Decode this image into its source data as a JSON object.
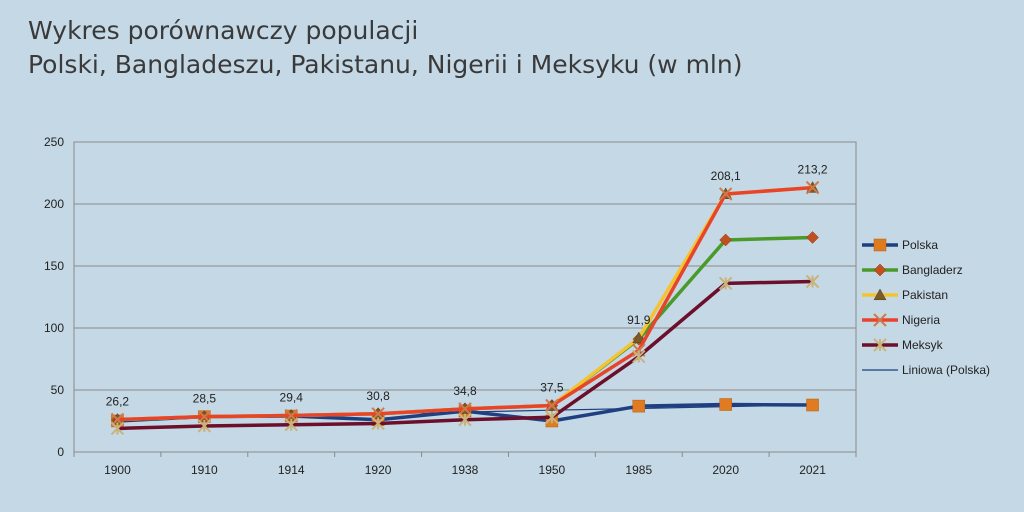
{
  "title": {
    "line1": "Wykres porównawczy populacji",
    "line2": "Polski, Bangladeszu, Pakistanu, Nigerii i Meksyku (w mln)"
  },
  "chart_data": {
    "type": "line",
    "categories": [
      "1900",
      "1910",
      "1914",
      "1920",
      "1938",
      "1950",
      "1985",
      "2020",
      "2021"
    ],
    "ylim": [
      0,
      250
    ],
    "yticks": [
      0,
      50,
      100,
      150,
      200,
      250
    ],
    "grid": true,
    "legend_position": "right",
    "series": [
      {
        "name": "Polska",
        "color": "#1f3f80",
        "marker": "square",
        "marker_color": "#e07b22",
        "values": [
          25,
          28.5,
          29,
          26,
          33,
          25,
          37,
          38.3,
          37.9
        ]
      },
      {
        "name": "Bangladerz",
        "color": "#4a9a2a",
        "marker": "diamond",
        "marker_color": "#c0501f",
        "values": [
          26,
          28.5,
          29.4,
          30.8,
          34.8,
          37.5,
          91,
          171,
          173
        ]
      },
      {
        "name": "Pakistan",
        "color": "#f4c430",
        "marker": "triangle",
        "marker_color": "#7a5a28",
        "values": [
          26.2,
          28.5,
          29.4,
          30.8,
          34.8,
          37.5,
          91.9,
          208.1,
          213.2
        ]
      },
      {
        "name": "Nigeria",
        "color": "#e8442a",
        "marker": "x",
        "marker_color": "#d07a4a",
        "values": [
          26.2,
          28.5,
          29.4,
          30.8,
          34.8,
          37.5,
          82,
          208.1,
          213.2
        ]
      },
      {
        "name": "Meksyk",
        "color": "#6b0f2a",
        "marker": "star",
        "marker_color": "#c9b37a",
        "values": [
          19,
          21,
          22,
          23,
          26,
          28,
          77,
          136,
          137.5
        ]
      },
      {
        "name": "Liniowa (Polska)",
        "color": "#1f3f80",
        "marker": "none",
        "trendline": true,
        "values": [
          26.4,
          27.9,
          29.3,
          30.8,
          32.2,
          33.7,
          35.1,
          36.6,
          38.0
        ]
      }
    ],
    "data_labels": [
      {
        "index": 0,
        "value": 26.2,
        "text": "26,2"
      },
      {
        "index": 1,
        "value": 28.5,
        "text": "28,5"
      },
      {
        "index": 2,
        "value": 29.4,
        "text": "29,4"
      },
      {
        "index": 3,
        "value": 30.8,
        "text": "30,8"
      },
      {
        "index": 4,
        "value": 34.8,
        "text": "34,8"
      },
      {
        "index": 5,
        "value": 37.5,
        "text": "37,5"
      },
      {
        "index": 6,
        "value": 91.9,
        "text": "91,9"
      },
      {
        "index": 7,
        "value": 208.1,
        "text": "208,1"
      },
      {
        "index": 8,
        "value": 213.2,
        "text": "213,2"
      }
    ]
  }
}
